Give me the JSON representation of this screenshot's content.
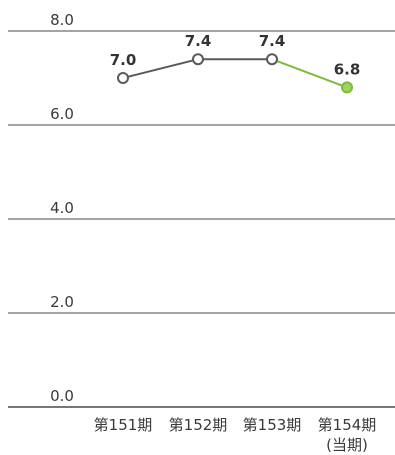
{
  "chart_data": {
    "type": "line",
    "title": "",
    "xlabel": "",
    "ylabel": "",
    "ylim": [
      0,
      8
    ],
    "yticks": [
      "0.0",
      "2.0",
      "4.0",
      "6.0",
      "8.0"
    ],
    "ytick_values": [
      0,
      2,
      4,
      6,
      8
    ],
    "grid": true,
    "categories": [
      {
        "line1": "第151期",
        "line2": ""
      },
      {
        "line1": "第152期",
        "line2": ""
      },
      {
        "line1": "第153期",
        "line2": ""
      },
      {
        "line1": "第154期",
        "line2": "(当期)"
      }
    ],
    "values": [
      7.0,
      7.4,
      7.4,
      6.8
    ],
    "data_labels": [
      "7.0",
      "7.4",
      "7.4",
      "6.8"
    ],
    "colors": {
      "past": "#5a5a5a",
      "current": "#7dbb3c",
      "current_fill": "#9fd45e",
      "grid": "#4a4a4a"
    }
  }
}
